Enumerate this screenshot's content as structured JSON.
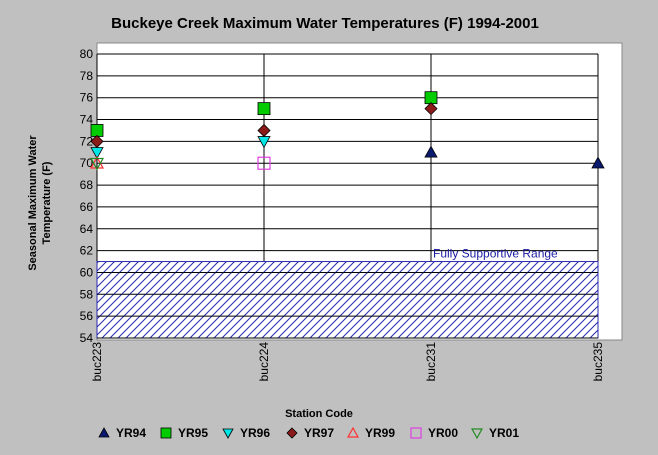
{
  "chart_data": {
    "type": "scatter",
    "title": "Buckeye Creek Maximum Water Temperatures (F) 1994-2001",
    "xlabel": "Station Code",
    "ylabel_lines": [
      "Seasonal Maximum Water",
      "Temperature  (F)"
    ],
    "categories": [
      "buc223",
      "buc224",
      "buc231",
      "buc235"
    ],
    "ylim": [
      54,
      80
    ],
    "yticks": [
      "54",
      "56",
      "58",
      "60",
      "62",
      "64",
      "66",
      "68",
      "70",
      "72",
      "74",
      "76",
      "78",
      "80"
    ],
    "grid": true,
    "legend_position": "bottom",
    "band": {
      "label": "Fully Supportive Range",
      "ymin": 54,
      "ymax": 61,
      "color": "#2a2ab0"
    },
    "series": [
      {
        "name": "YR94",
        "marker": "triangle-up",
        "color": "#0a1a6e",
        "filled": true,
        "values": [
          null,
          null,
          71,
          70
        ]
      },
      {
        "name": "YR95",
        "marker": "square",
        "color": "#00cc00",
        "filled": true,
        "values": [
          73,
          75,
          76,
          null
        ]
      },
      {
        "name": "YR96",
        "marker": "triangle-down",
        "color": "#00e5e5",
        "filled": true,
        "values": [
          71,
          72,
          null,
          null
        ]
      },
      {
        "name": "YR97",
        "marker": "diamond",
        "color": "#8b1a1a",
        "filled": true,
        "values": [
          72,
          73,
          75,
          null
        ]
      },
      {
        "name": "YR99",
        "marker": "triangle-up",
        "color": "#ff3030",
        "filled": false,
        "values": [
          70,
          null,
          null,
          null
        ]
      },
      {
        "name": "YR00",
        "marker": "square",
        "color": "#e040e0",
        "filled": false,
        "values": [
          null,
          70,
          null,
          null
        ]
      },
      {
        "name": "YR01",
        "marker": "triangle-down",
        "color": "#228b22",
        "filled": false,
        "values": [
          70,
          null,
          null,
          null
        ]
      }
    ]
  }
}
